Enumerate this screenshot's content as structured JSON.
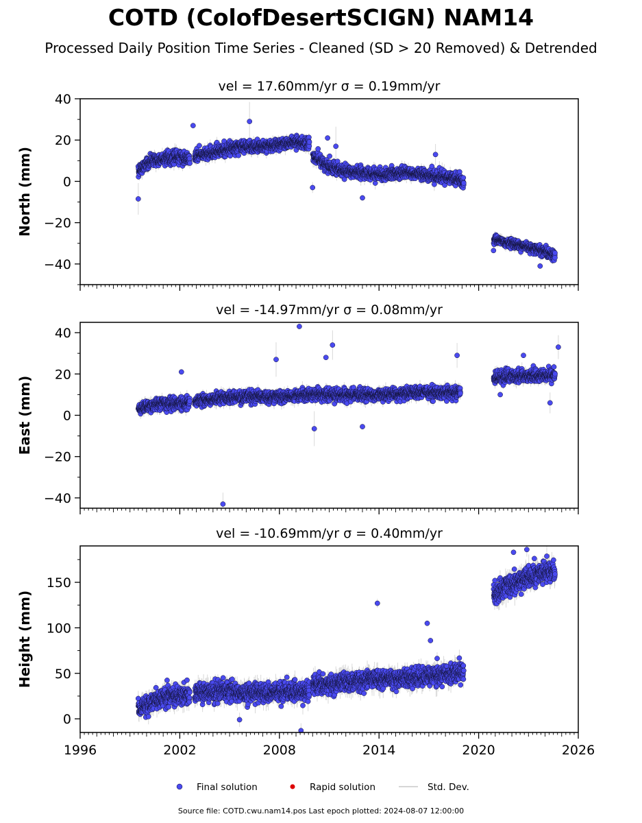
{
  "header": {
    "title": "COTD (ColofDesertSCIGN) NAM14",
    "subtitle": "Processed Daily Position Time Series - Cleaned (SD > 20 Removed) & Detrended"
  },
  "footer": {
    "text": "Source file: COTD.cwu.nam14.pos  Last epoch plotted: 2024-08-07 12:00:00"
  },
  "colors": {
    "final": "#4a4af0",
    "final_edge": "#111133",
    "rapid": "#dd0000",
    "stddev": "#c8c8c8"
  },
  "chart_data": [
    {
      "type": "scatter",
      "panel": "north",
      "title": "vel = 17.60mm/yr   σ = 0.19mm/yr",
      "ylabel": "North (mm)",
      "xlim": [
        1996,
        2026
      ],
      "ylim": [
        -50,
        40
      ],
      "yticks": [
        -40,
        -20,
        0,
        20,
        40
      ],
      "xticks": [],
      "tick_labels": [
        "−40",
        "−20",
        "0",
        "20",
        "40"
      ],
      "segments": [
        {
          "x": [
            1999.5,
            2000.0,
            2001.0,
            2002.0,
            2002.6
          ],
          "y": [
            5,
            9,
            11,
            12,
            11
          ],
          "noise": 2.5
        },
        {
          "x": [
            2002.9,
            2004.0,
            2005.0,
            2006.0,
            2007.0,
            2008.0,
            2009.0,
            2009.8
          ],
          "y": [
            12,
            14,
            16,
            17,
            17,
            18,
            19,
            18
          ],
          "noise": 2.5
        },
        {
          "x": [
            2010.0,
            2011.0,
            2012.0,
            2013.0,
            2014.0,
            2015.0,
            2016.0,
            2017.0,
            2018.0,
            2018.8,
            2019.1
          ],
          "y": [
            12,
            7,
            5,
            4,
            3,
            4,
            4,
            3,
            2,
            1,
            -1
          ],
          "noise": 2.5
        },
        {
          "x": [
            2020.9,
            2022.0,
            2023.0,
            2024.0,
            2024.6
          ],
          "y": [
            -28,
            -30,
            -32,
            -34,
            -36
          ],
          "noise": 2.0
        }
      ],
      "outliers": [
        {
          "x": 1999.5,
          "y": -8.5
        },
        {
          "x": 2002.8,
          "y": 27
        },
        {
          "x": 2006.2,
          "y": 29
        },
        {
          "x": 2010.9,
          "y": 21
        },
        {
          "x": 2011.4,
          "y": 17
        },
        {
          "x": 2013.0,
          "y": -8
        },
        {
          "x": 2017.4,
          "y": 13
        },
        {
          "x": 2023.7,
          "y": -41
        }
      ]
    },
    {
      "type": "scatter",
      "panel": "east",
      "title": "vel = -14.97mm/yr   σ = 0.08mm/yr",
      "ylabel": "East (mm)",
      "xlim": [
        1996,
        2026
      ],
      "ylim": [
        -45,
        45
      ],
      "yticks": [
        -40,
        -20,
        0,
        20,
        40
      ],
      "xticks": [],
      "tick_labels": [
        "−40",
        "−20",
        "0",
        "20",
        "40"
      ],
      "segments": [
        {
          "x": [
            1999.5,
            2000.5,
            2001.5,
            2002.6
          ],
          "y": [
            3,
            5,
            6,
            6
          ],
          "noise": 2.5
        },
        {
          "x": [
            2002.9,
            2004.0,
            2006.0,
            2008.0,
            2010.0,
            2012.0,
            2014.0,
            2016.0,
            2018.0,
            2018.9
          ],
          "y": [
            7,
            8,
            9,
            9,
            10,
            10,
            10,
            11,
            11,
            11
          ],
          "noise": 2.5
        },
        {
          "x": [
            2020.9,
            2022.0,
            2023.0,
            2024.6
          ],
          "y": [
            18,
            19,
            19,
            20
          ],
          "noise": 2.5
        }
      ],
      "outliers": [
        {
          "x": 2004.6,
          "y": -43
        },
        {
          "x": 2009.2,
          "y": 43
        },
        {
          "x": 2011.2,
          "y": 34
        },
        {
          "x": 2010.8,
          "y": 28
        },
        {
          "x": 2007.8,
          "y": 27
        },
        {
          "x": 2013.0,
          "y": -5.5
        },
        {
          "x": 2010.1,
          "y": -6.5
        },
        {
          "x": 2002.1,
          "y": 21
        },
        {
          "x": 2018.7,
          "y": 29
        },
        {
          "x": 2022.7,
          "y": 29
        },
        {
          "x": 2024.8,
          "y": 33
        },
        {
          "x": 2021.3,
          "y": 10
        },
        {
          "x": 2024.3,
          "y": 6
        }
      ]
    },
    {
      "type": "scatter",
      "panel": "height",
      "title": "vel = -10.69mm/yr   σ = 0.40mm/yr",
      "ylabel": "Height (mm)",
      "xlim": [
        1996,
        2026
      ],
      "ylim": [
        -15,
        190
      ],
      "yticks": [
        0,
        50,
        100,
        150
      ],
      "xticks": [
        1996,
        2002,
        2008,
        2014,
        2020,
        2026
      ],
      "tick_labels": [
        "0",
        "50",
        "100",
        "150"
      ],
      "xtick_labels": [
        "1996",
        "2002",
        "2008",
        "2014",
        "2020",
        "2026"
      ],
      "segments": [
        {
          "x": [
            1999.5,
            2000.5,
            2001.5,
            2002.6
          ],
          "y": [
            10,
            20,
            25,
            26
          ],
          "noise": 9
        },
        {
          "x": [
            2002.9,
            2004.0,
            2006.0,
            2008.0,
            2009.8
          ],
          "y": [
            30,
            30,
            28,
            30,
            30
          ],
          "noise": 9
        },
        {
          "x": [
            2010.0,
            2011.0,
            2012.0,
            2014.0,
            2016.0,
            2018.0,
            2019.1
          ],
          "y": [
            38,
            38,
            40,
            44,
            45,
            48,
            52
          ],
          "noise": 9
        },
        {
          "x": [
            2020.9,
            2022.0,
            2023.0,
            2024.6
          ],
          "y": [
            135,
            148,
            158,
            162
          ],
          "noise": 10
        }
      ],
      "outliers": [
        {
          "x": 2013.9,
          "y": 127
        },
        {
          "x": 2016.9,
          "y": 105
        },
        {
          "x": 2009.3,
          "y": -13
        },
        {
          "x": 2017.1,
          "y": 86
        },
        {
          "x": 2022.9,
          "y": 186
        },
        {
          "x": 2022.1,
          "y": 183
        },
        {
          "x": 2005.6,
          "y": -1
        }
      ]
    }
  ],
  "legend": {
    "placement": "bottom-center",
    "items": [
      {
        "label": "Final solution",
        "color": "#4a4af0"
      },
      {
        "label": "Rapid solution",
        "color": "#dd0000"
      },
      {
        "label": "Std. Dev.",
        "color": "#c8c8c8"
      }
    ]
  }
}
